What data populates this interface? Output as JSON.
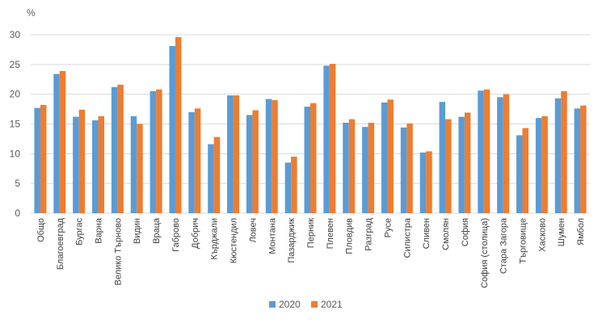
{
  "chart_data": {
    "type": "bar",
    "ylabel": "%",
    "ylim": [
      0,
      30
    ],
    "yticks": [
      0,
      5,
      10,
      15,
      20,
      25,
      30
    ],
    "grid": true,
    "legend_position": "bottom",
    "categories": [
      "Общо",
      "Благоевград",
      "Бургас",
      "Варна",
      "Велико Търново",
      "Видин",
      "Враца",
      "Габрово",
      "Добрич",
      "Кърджали",
      "Кюстендил",
      "Ловеч",
      "Монтана",
      "Пазарджик",
      "Перник",
      "Плевен",
      "Пловдив",
      "Разград",
      "Русе",
      "Силистра",
      "Сливен",
      "Смолян",
      "София",
      "София (столица)",
      "Стара Загора",
      "Търговище",
      "Хасково",
      "Шумен",
      "Ямбол"
    ],
    "series": [
      {
        "name": "2020",
        "color": "#5B9BD5",
        "values": [
          17.7,
          23.4,
          16.2,
          15.6,
          21.2,
          16.3,
          20.5,
          28.1,
          17.0,
          11.6,
          19.8,
          16.5,
          19.2,
          8.5,
          17.9,
          24.8,
          15.2,
          14.5,
          18.6,
          14.4,
          10.2,
          18.7,
          16.2,
          20.6,
          19.5,
          13.1,
          16.0,
          19.3,
          17.6
        ]
      },
      {
        "name": "2021",
        "color": "#ED7D31",
        "values": [
          18.2,
          23.9,
          17.4,
          16.3,
          21.6,
          15.0,
          20.8,
          29.6,
          17.6,
          12.8,
          19.8,
          17.3,
          19.0,
          9.5,
          18.5,
          25.1,
          15.8,
          15.2,
          19.1,
          15.1,
          10.4,
          15.8,
          16.9,
          20.8,
          20.0,
          14.3,
          16.3,
          20.5,
          18.1
        ]
      }
    ]
  },
  "colors": {
    "grid": "#D9D9D9",
    "text": "#595959"
  }
}
